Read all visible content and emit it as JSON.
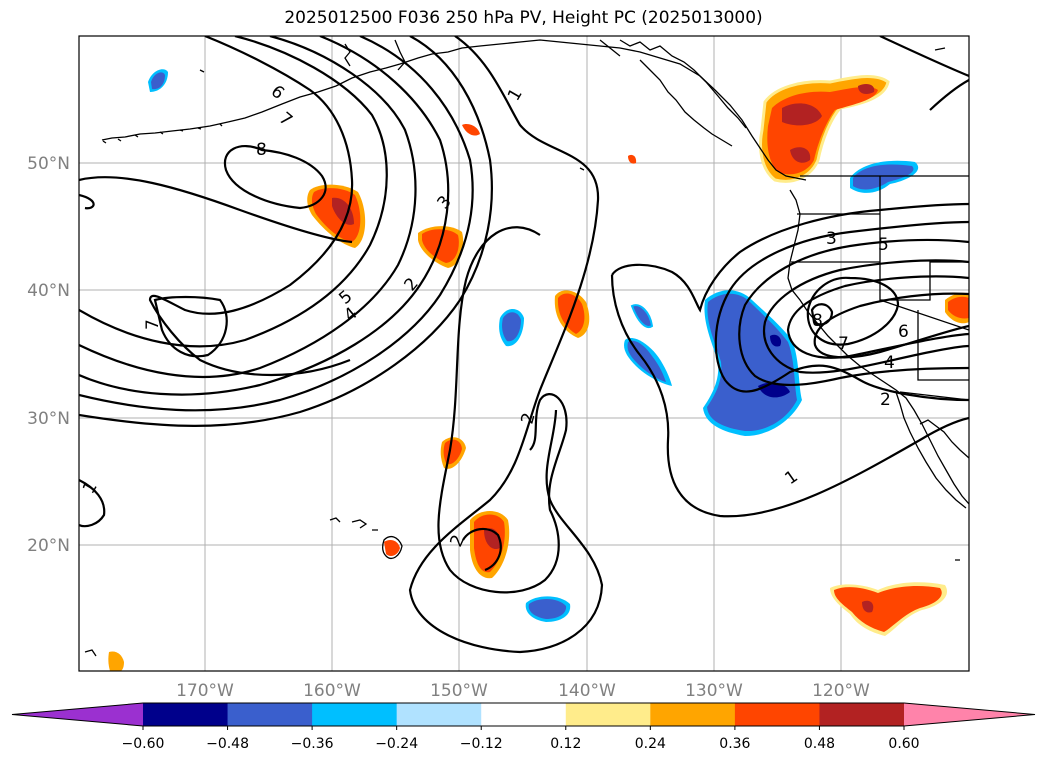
{
  "title": "2025012500 F036 250 hPa PV, Height PC (2025013000)",
  "lat_labels": [
    "50°N",
    "40°N",
    "30°N",
    "20°N"
  ],
  "lon_labels": [
    "170°W",
    "160°W",
    "150°W",
    "140°W",
    "130°W",
    "120°W"
  ],
  "colorbar": {
    "ticks": [
      "−0.60",
      "−0.48",
      "−0.36",
      "−0.24",
      "−0.12",
      "0.12",
      "0.24",
      "0.36",
      "0.48",
      "0.60"
    ],
    "colors": {
      "under": "#9b30d0",
      "bins": [
        "#00008b",
        "#3a5fcd",
        "#00bfff",
        "#b0e2ff",
        "#ffffff",
        "#ffec8b",
        "#ffa500",
        "#ff4500",
        "#b22222"
      ],
      "over": "#ff83aa"
    }
  },
  "contour_labels": [
    "6",
    "7",
    "8",
    "7",
    "5",
    "4",
    "3",
    "2",
    "1",
    "2",
    "2",
    "1",
    "3",
    "5",
    "8",
    "7",
    "6",
    "4",
    "2",
    "1",
    "1"
  ],
  "colors": {
    "pv_positive": "#ff4500",
    "pv_strong": "#b22222",
    "pv_negative": "#3a5fcd",
    "pv_strong_negative": "#00008b"
  }
}
